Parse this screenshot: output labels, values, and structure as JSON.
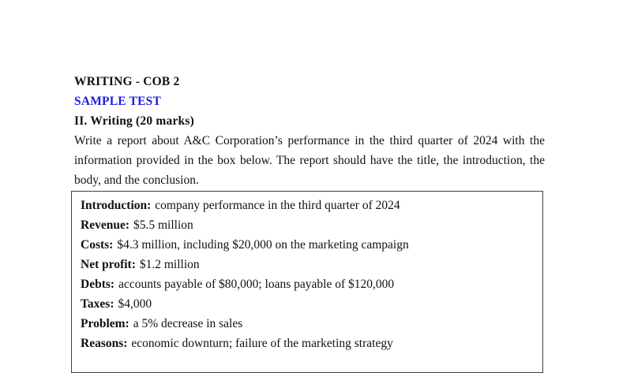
{
  "page": {
    "heading1": "WRITING - COB 2",
    "heading2": "SAMPLE TEST",
    "heading3": "II. Writing (20 marks)",
    "instructions": "Write a report about A&C Corporation’s performance in the third quarter of 2024 with the information provided in the box below. The report should have the title, the introduction, the body, and the conclusion.",
    "accent_color": "#1c1ce0",
    "text_color": "#111111",
    "box_border_color": "#404040"
  },
  "info_box": {
    "items": [
      {
        "label": "Introduction:",
        "text": "company performance in the third quarter of 2024"
      },
      {
        "label": "Revenue:",
        "text": "$5.5 million"
      },
      {
        "label": "Costs:",
        "text": "$4.3 million, including $20,000 on the marketing campaign"
      },
      {
        "label": "Net profit:",
        "text": "$1.2 million"
      },
      {
        "label": "Debts:",
        "text": "accounts payable of $80,000; loans payable of $120,000"
      },
      {
        "label": "Taxes:",
        "text": "$4,000"
      },
      {
        "label": "Problem:",
        "text": "a 5% decrease in sales"
      },
      {
        "label": "Reasons:",
        "text": "economic downturn; failure of the marketing strategy"
      }
    ]
  }
}
